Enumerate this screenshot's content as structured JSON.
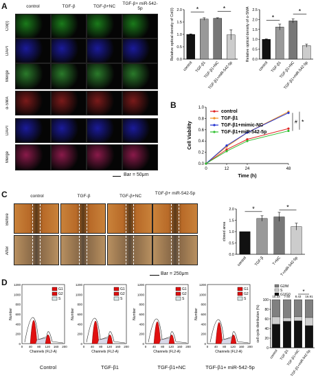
{
  "panel_labels": {
    "a": "A",
    "b": "B",
    "c": "C",
    "d": "D"
  },
  "panelA": {
    "columns": [
      "control",
      "TGF-β",
      "TGF-β+NC",
      "TGF-β+ miR-542-5p"
    ],
    "rows": [
      "Col(I)",
      "DAPI",
      "Merge",
      "α-SMA",
      "DAPI",
      "Merge"
    ],
    "row_colors": [
      "#1a7a1a",
      "#1a1a9a",
      "#2a7a2a",
      "#7a1a1a",
      "#1a1a9a",
      "#8a1a4a"
    ],
    "scale_bar": "Bar = 50μm"
  },
  "panelC": {
    "columns": [
      "control",
      "TGF-β",
      "TGF-β+NC",
      "TGF-β+ miR-542-5p"
    ],
    "rows": [
      "Before",
      "After"
    ],
    "scale_bar": "Bar = 250μm"
  },
  "panelD": {
    "histogram_titles": [
      "Control",
      "TGF-β1",
      "TGF-β1+NC",
      "TGF-β1+ miR-542-5p"
    ],
    "legend": [
      "G1",
      "G2",
      "S"
    ],
    "x_axis_label": "Channels (FL2-A)",
    "y_axis_label": "Number"
  },
  "chart_data": [
    {
      "type": "bar",
      "ylabel": "Relative optical density of Col(I)",
      "categories": [
        "control",
        "TGF-β1",
        "TGF-β1+NC",
        "TGF-β1+miR-542-5p"
      ],
      "values": [
        1.0,
        1.62,
        1.65,
        0.98
      ],
      "errors": [
        0.02,
        0.05,
        0.02,
        0.2
      ],
      "ylim": [
        0,
        2.0
      ],
      "yticks": [
        "0.0",
        "0.5",
        "1.0",
        "1.5",
        "2.0"
      ],
      "colors": [
        "#111111",
        "#999999",
        "#777777",
        "#cccccc"
      ],
      "sig": [
        "*",
        "*"
      ]
    },
    {
      "type": "bar",
      "ylabel": "Relative optical density of α-SMA",
      "categories": [
        "control",
        "TGF-β1",
        "TGF-β1+NC",
        "TGF-β1+miR-542-5p"
      ],
      "values": [
        1.0,
        1.62,
        1.93,
        0.68
      ],
      "errors": [
        0.02,
        0.15,
        0.1,
        0.08
      ],
      "ylim": [
        0,
        2.5
      ],
      "yticks": [
        "0.0",
        "0.5",
        "1.0",
        "1.5",
        "2.0",
        "2.5"
      ],
      "colors": [
        "#111111",
        "#999999",
        "#777777",
        "#cccccc"
      ],
      "sig": [
        "*",
        "*"
      ]
    },
    {
      "type": "line",
      "xlabel": "Time (h)",
      "ylabel": "Cell Viability",
      "x": [
        0,
        12,
        24,
        48
      ],
      "xticks": [
        "0",
        "12",
        "24",
        "48"
      ],
      "ylim": [
        0,
        1.0
      ],
      "yticks": [
        "0.0",
        "0.2",
        "0.4",
        "0.6",
        "0.8",
        "1.0"
      ],
      "series": [
        {
          "name": "control",
          "color": "#e02020",
          "values": [
            0.0,
            0.25,
            0.43,
            0.62
          ]
        },
        {
          "name": "TGF-β1",
          "color": "#f09020",
          "values": [
            0.0,
            0.3,
            0.55,
            0.92
          ]
        },
        {
          "name": "TGF-β1+mimic-NC",
          "color": "#2030d0",
          "values": [
            0.0,
            0.32,
            0.55,
            0.9
          ]
        },
        {
          "name": "TGF-β1+miR-542-5p",
          "color": "#30c030",
          "values": [
            0.0,
            0.22,
            0.4,
            0.58
          ]
        }
      ],
      "sig": [
        "#",
        "*"
      ]
    },
    {
      "type": "bar",
      "ylabel": "closed area",
      "categories": [
        "control",
        "TGF-β",
        "T+NC",
        "T+miR-542-5p"
      ],
      "values": [
        1.0,
        1.58,
        1.65,
        1.22
      ],
      "errors": [
        0.0,
        0.12,
        0.2,
        0.15
      ],
      "ylim": [
        0,
        2.0
      ],
      "yticks": [
        "0.0",
        "0.5",
        "1.0",
        "1.5",
        "2.0"
      ],
      "colors": [
        "#111111",
        "#999999",
        "#777777",
        "#cccccc"
      ],
      "sig": [
        "*",
        "*"
      ]
    },
    {
      "type": "bar",
      "stacked": true,
      "ylabel": "cell cycle distribution (%)",
      "categories": [
        "control",
        "TGF-β1",
        "TGF-β1+NC",
        "TGF-β1+miR-542-5p"
      ],
      "series": [
        {
          "name": "G1/G0",
          "color": "#111111",
          "values": [
            49,
            55,
            56,
            46
          ]
        },
        {
          "name": "S",
          "color": "#cfcfcf",
          "values": [
            15.33,
            7.6,
            8.43,
            16.91
          ]
        },
        {
          "name": "G2/M",
          "color": "#808080",
          "values": [
            35.67,
            37.4,
            35.57,
            37.09
          ]
        }
      ],
      "s_labels": [
        "15.33",
        "7.60",
        "8.43",
        "16.91"
      ],
      "ylim": [
        0,
        100
      ],
      "yticks": [
        "0",
        "20",
        "40",
        "60",
        "80",
        "100"
      ],
      "sig": [
        "*"
      ]
    }
  ]
}
